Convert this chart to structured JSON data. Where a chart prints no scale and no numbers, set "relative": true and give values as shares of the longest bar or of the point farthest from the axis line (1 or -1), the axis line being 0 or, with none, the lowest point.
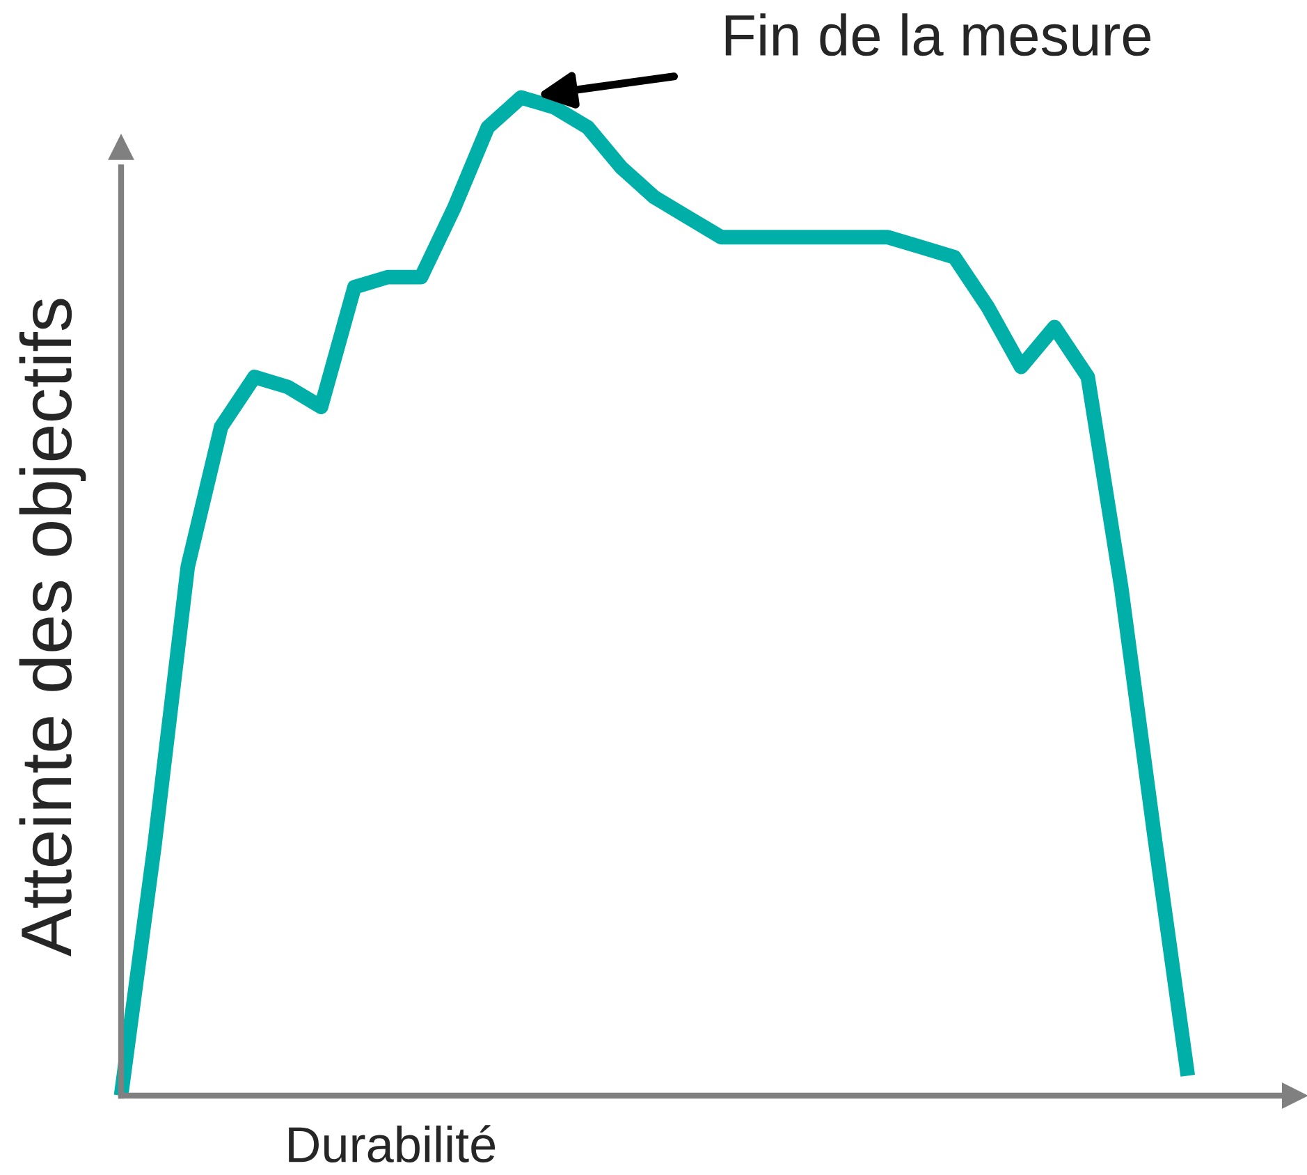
{
  "chart_data": {
    "type": "line",
    "relative": true,
    "xlabel": "Durabilité",
    "ylabel": "Atteinte des objectifs",
    "annotations": [
      "Fin de la mesure"
    ],
    "categories": [
      null,
      null,
      null,
      null,
      null,
      null,
      null,
      null,
      null,
      null,
      null,
      null,
      null,
      null,
      null,
      null,
      null,
      null,
      null,
      null,
      null,
      null,
      null,
      null,
      null,
      null,
      null,
      null,
      null,
      null,
      null,
      null,
      null
    ],
    "series": [
      {
        "color": "#00b0a8",
        "values": [
          0,
          0.25,
          0.53,
          0.67,
          0.72,
          0.71,
          0.69,
          0.81,
          0.82,
          0.82,
          0.89,
          0.97,
          1.0,
          0.99,
          0.97,
          0.93,
          0.9,
          0.88,
          0.86,
          0.86,
          0.86,
          0.86,
          0.86,
          0.86,
          0.85,
          0.84,
          0.79,
          0.73,
          0.77,
          0.72,
          0.51,
          0.26,
          0.02
        ]
      }
    ]
  }
}
